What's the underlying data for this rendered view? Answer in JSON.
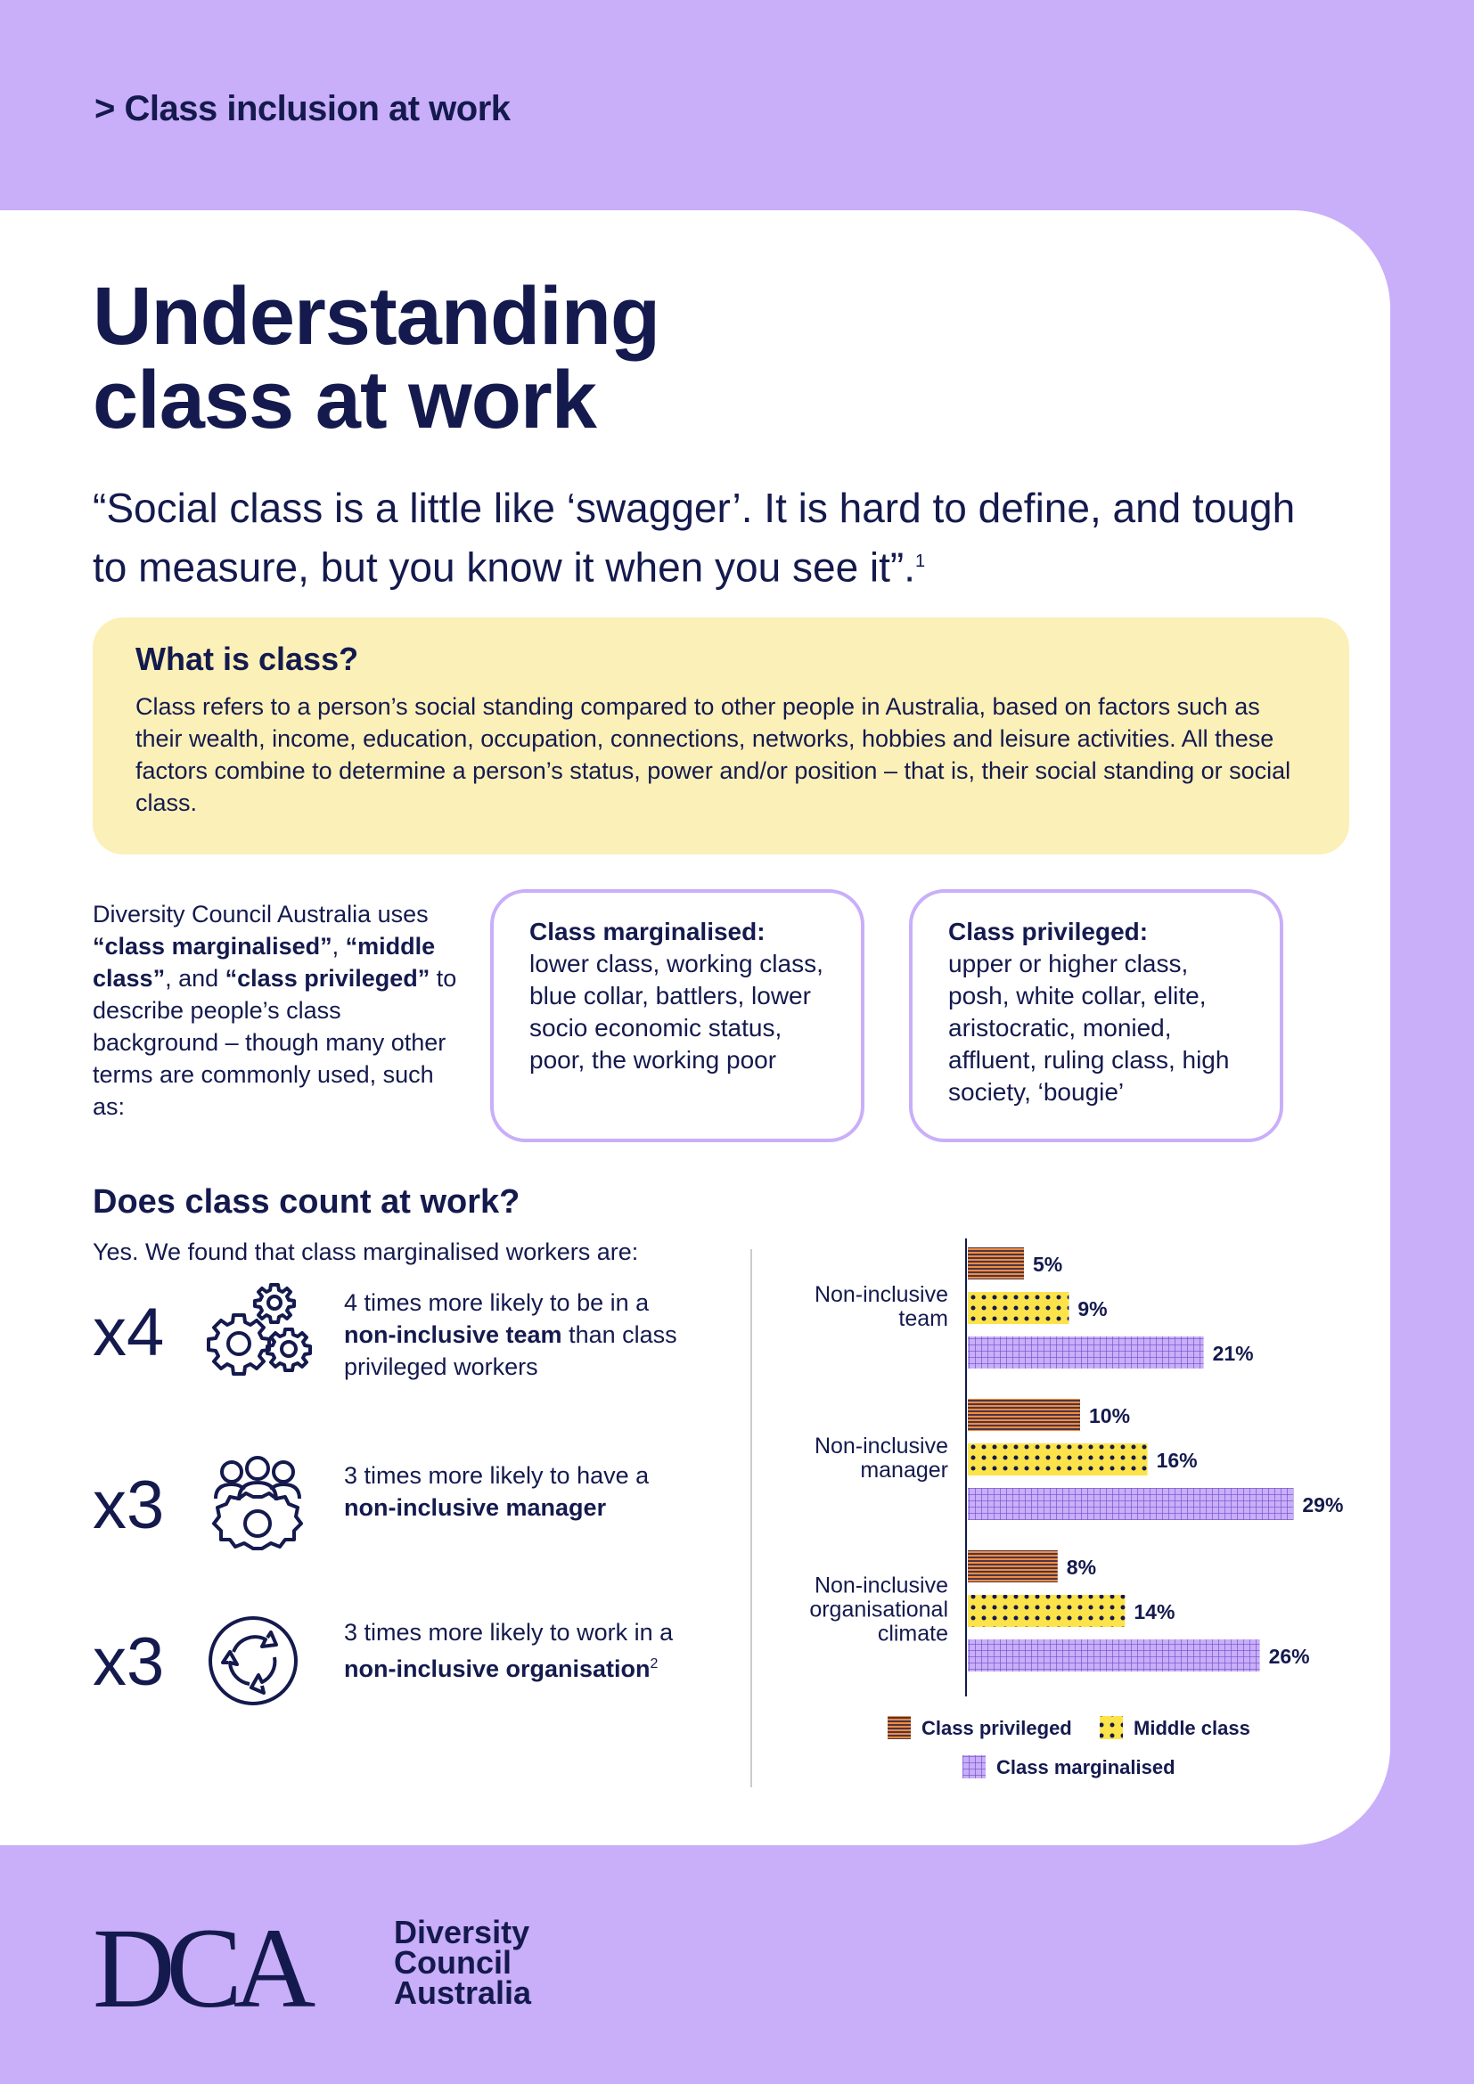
{
  "header": {
    "section_link": "> Class inclusion at work"
  },
  "title": {
    "line1": "Understanding",
    "line2": "class at work"
  },
  "quote": {
    "text": "“Social class is a little like ‘swagger’. It is hard to define, and tough to measure, but you know it when you see it”.",
    "footnote": "1"
  },
  "what_is_class": {
    "heading": "What is class?",
    "body": "Class refers to a person’s social standing compared to other people in Australia, based on factors such as their wealth, income, education, occupation, connections, networks, hobbies and leisure activities. All these factors combine to determine a person’s status, power and/or position – that is, their social standing or social class."
  },
  "intro": {
    "p1": "Diversity Council Australia uses ",
    "term1": "“class marginalised”",
    "p2": ", ",
    "term2": "“middle class”",
    "p3": ", and ",
    "term3": "“class privileged”",
    "p4": " to describe people’s class background – though many other terms are commonly used, such as:"
  },
  "terms": {
    "marginalised": {
      "heading": "Class marginalised:",
      "text": "lower class, working class, blue collar, battlers, lower socio economic status, poor, the working poor"
    },
    "privileged": {
      "heading": "Class privileged:",
      "text": "upper or higher class, posh, white collar, elite, aristocratic, monied, affluent, ruling class, high society, ‘bougie’"
    }
  },
  "count_section": {
    "heading": "Does class count at work?",
    "found_text": "Yes. We found that class marginalised workers are:"
  },
  "stats": [
    {
      "multiplier": "x4",
      "icon": "gears-icon",
      "pre": "4 times more likely to be in a ",
      "bold": "non-inclusive team",
      "post": " than class privileged workers",
      "footnote": ""
    },
    {
      "multiplier": "x3",
      "icon": "people-gear-icon",
      "pre": "3 times more likely to have a ",
      "bold": "non-inclusive manager",
      "post": "",
      "footnote": ""
    },
    {
      "multiplier": "x3",
      "icon": "circular-arrows-icon",
      "pre": "3 times more likely to work in a ",
      "bold": "non-inclusive organisation",
      "post": "",
      "footnote": "2"
    }
  ],
  "chart_data": {
    "type": "bar",
    "orientation": "horizontal",
    "categories": [
      [
        "Non-inclusive",
        "team"
      ],
      [
        "Non-inclusive",
        "manager"
      ],
      [
        "Non-inclusive",
        "organisational",
        "climate"
      ]
    ],
    "series": [
      {
        "name": "Class privileged",
        "values": [
          5,
          10,
          8
        ],
        "labels": [
          "5%",
          "10%",
          "8%"
        ],
        "color": "#f28c3c",
        "pattern": "horizontal-lines"
      },
      {
        "name": "Middle class",
        "values": [
          9,
          16,
          14
        ],
        "labels": [
          "9%",
          "16%",
          "14%"
        ],
        "color": "#fde34a",
        "pattern": "dots"
      },
      {
        "name": "Class marginalised",
        "values": [
          21,
          29,
          26
        ],
        "labels": [
          "21%",
          "29%",
          "26%"
        ],
        "color": "#c9aef9",
        "pattern": "grid"
      }
    ],
    "xlim": [
      0,
      30
    ],
    "legend": "bottom"
  },
  "footer": {
    "logo_letters": "DCA",
    "org_line1": "Diversity",
    "org_line2": "Council",
    "org_line3": "Australia"
  },
  "colors": {
    "lilac": "#c9aef9",
    "navy": "#141a4d",
    "yellow_box": "#fbf0b8",
    "orange": "#f28c3c",
    "yellow": "#fde34a"
  }
}
